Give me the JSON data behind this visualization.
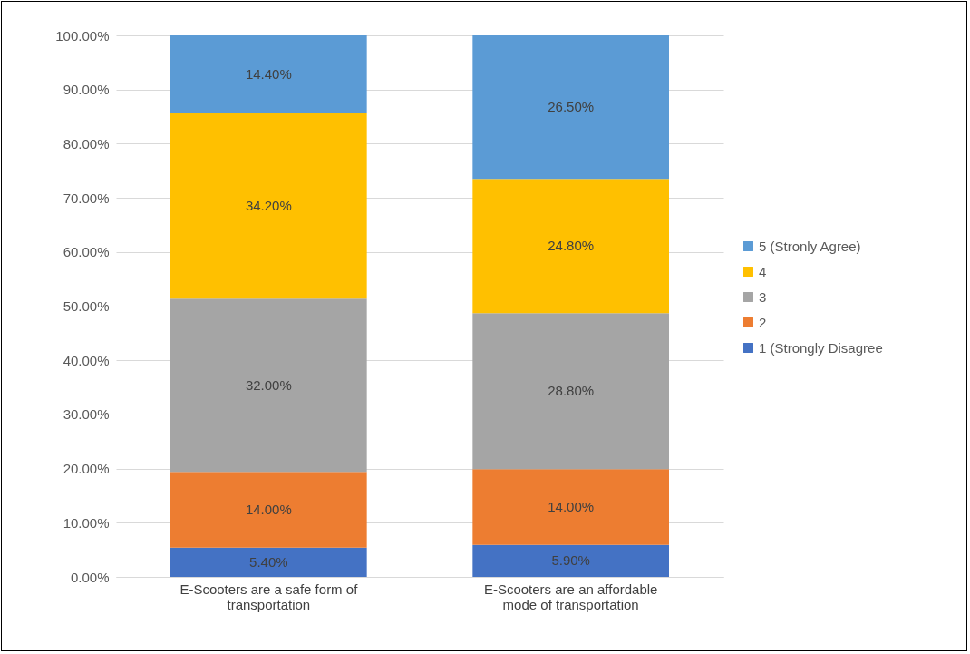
{
  "chart_data": {
    "type": "bar",
    "stacked": true,
    "categories": [
      "E-Scooters are a safe form of transportation",
      "E-Scooters are an affordable mode of transportation"
    ],
    "series": [
      {
        "name": "1 (Strongly Disagree",
        "color": "#4472c4",
        "values": [
          5.4,
          5.9
        ],
        "value_labels": [
          "5.40%",
          "5.90%"
        ]
      },
      {
        "name": "2",
        "color": "#ed7d31",
        "values": [
          14.0,
          14.0
        ],
        "value_labels": [
          "14.00%",
          "14.00%"
        ]
      },
      {
        "name": "3",
        "color": "#a5a5a5",
        "values": [
          32.0,
          28.8
        ],
        "value_labels": [
          "32.00%",
          "28.80%"
        ]
      },
      {
        "name": "4",
        "color": "#ffc000",
        "values": [
          34.2,
          24.8
        ],
        "value_labels": [
          "34.20%",
          "24.80%"
        ]
      },
      {
        "name": "5 (Stronly Agree)",
        "color": "#5b9bd5",
        "values": [
          14.4,
          26.5
        ],
        "value_labels": [
          "14.40%",
          "26.50%"
        ]
      }
    ],
    "ylim": [
      0,
      100
    ],
    "yticks": [
      {
        "value": 0,
        "label": "0.00%"
      },
      {
        "value": 10,
        "label": "10.00%"
      },
      {
        "value": 20,
        "label": "20.00%"
      },
      {
        "value": 30,
        "label": "30.00%"
      },
      {
        "value": 40,
        "label": "40.00%"
      },
      {
        "value": 50,
        "label": "50.00%"
      },
      {
        "value": 60,
        "label": "60.00%"
      },
      {
        "value": 70,
        "label": "70.00%"
      },
      {
        "value": 80,
        "label": "80.00%"
      },
      {
        "value": 90,
        "label": "90.00%"
      },
      {
        "value": 100,
        "label": "100.00%"
      }
    ],
    "grid": "y",
    "legend": "right"
  }
}
